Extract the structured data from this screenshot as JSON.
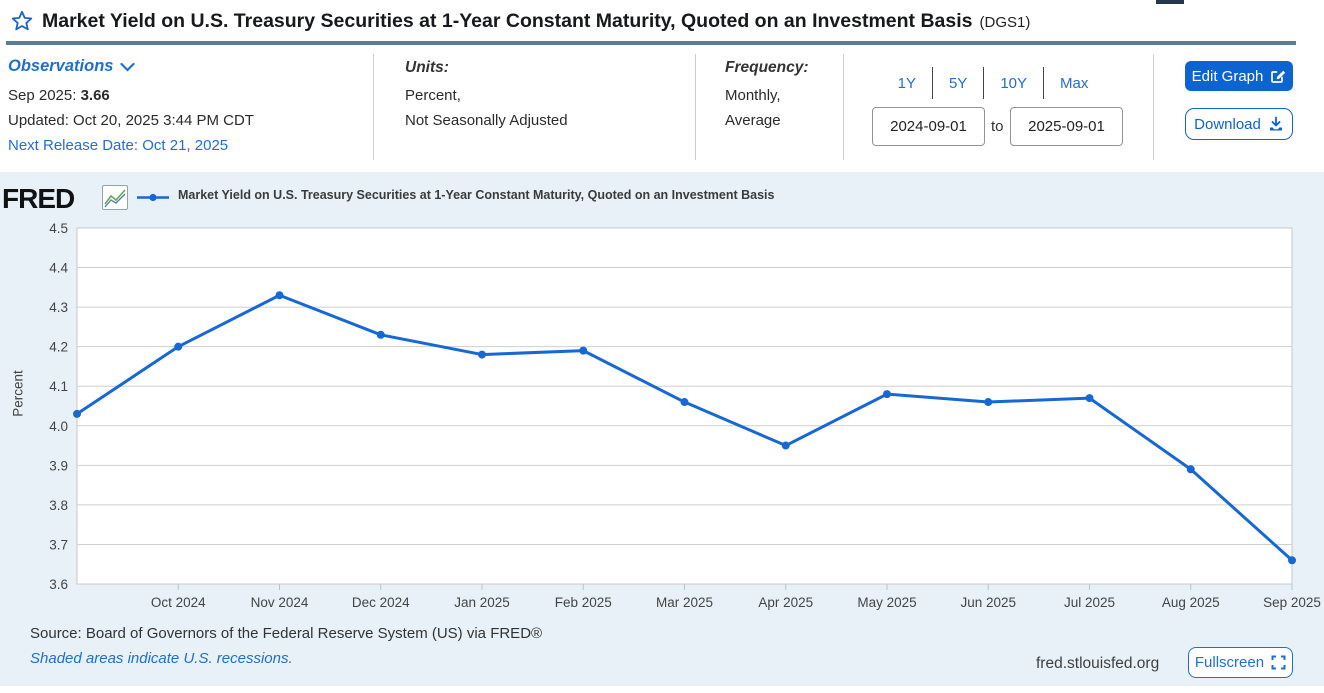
{
  "header": {
    "title": "Market Yield on U.S. Treasury Securities at 1-Year Constant Maturity, Quoted on an Investment Basis",
    "series_id": "(DGS1)"
  },
  "observations": {
    "label": "Observations",
    "latest_period": "Sep 2025:",
    "latest_value": "3.66",
    "updated": "Updated: Oct 20, 2025 3:44 PM CDT",
    "next_release": "Next Release Date: Oct 21, 2025"
  },
  "units": {
    "label": "Units:",
    "line1": "Percent,",
    "line2": "Not Seasonally Adjusted"
  },
  "frequency": {
    "label": "Frequency:",
    "line1": "Monthly,",
    "line2": "Average"
  },
  "range": {
    "presets": [
      "1Y",
      "5Y",
      "10Y",
      "Max"
    ],
    "start": "2024-09-01",
    "to_label": "to",
    "end": "2025-09-01"
  },
  "actions": {
    "edit_graph": "Edit Graph",
    "download": "Download",
    "fullscreen": "Fullscreen"
  },
  "branding": {
    "logo": "FRED",
    "site": "fred.stlouisfed.org"
  },
  "legend": {
    "label": "Market Yield on U.S. Treasury Securities at 1-Year Constant Maturity, Quoted on an Investment Basis"
  },
  "footer": {
    "source": "Source: Board of Governors of the Federal Reserve System (US) via FRED®",
    "recessions_note": "Shaded areas indicate U.S. recessions."
  },
  "colors": {
    "accent_blue": "#0d64d1",
    "link_blue": "#1f6fd1",
    "line_blue": "#1568d6",
    "divider_slate": "#5b7e98",
    "chart_bg": "#e8f1f8",
    "grid_gray": "#cfcfcf",
    "tick_gray": "#b3c4d2"
  },
  "chart_data": {
    "type": "line",
    "title": "Market Yield on U.S. Treasury Securities at 1-Year Constant Maturity, Quoted on an Investment Basis",
    "xlabel": "",
    "ylabel": "Percent",
    "x": [
      "Sep 2024",
      "Oct 2024",
      "Nov 2024",
      "Dec 2024",
      "Jan 2025",
      "Feb 2025",
      "Mar 2025",
      "Apr 2025",
      "May 2025",
      "Jun 2025",
      "Jul 2025",
      "Aug 2025",
      "Sep 2025"
    ],
    "values": [
      4.03,
      4.2,
      4.33,
      4.23,
      4.18,
      4.19,
      4.06,
      3.95,
      4.08,
      4.06,
      4.07,
      3.89,
      3.66
    ],
    "ylim": [
      3.6,
      4.5
    ],
    "y_tick_step": 0.1,
    "grid": true,
    "legend_position": "top-left"
  }
}
